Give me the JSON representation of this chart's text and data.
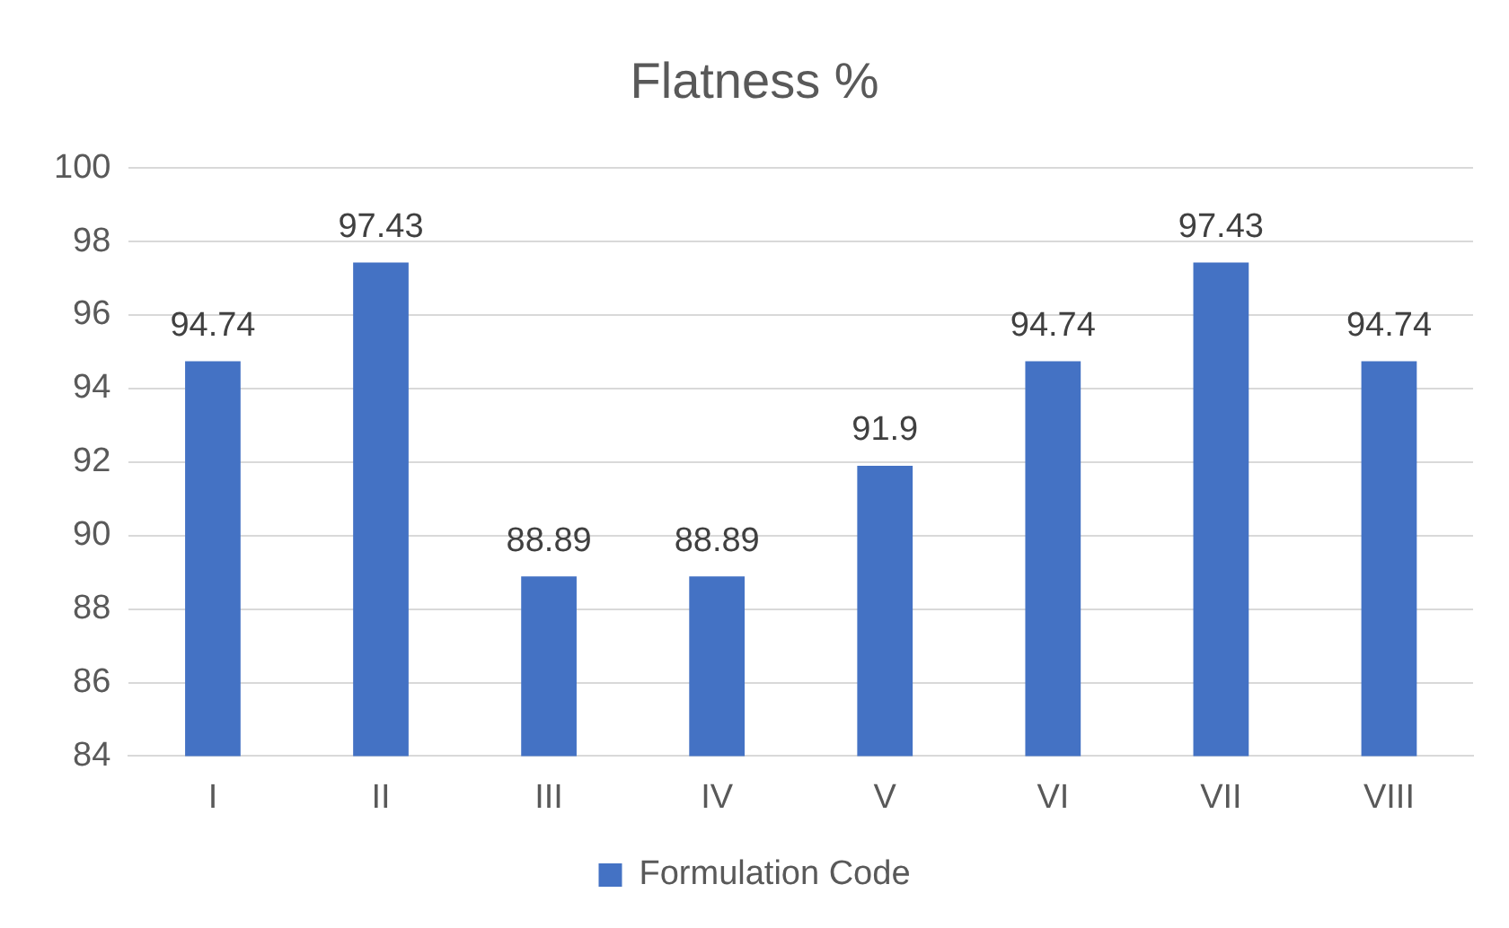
{
  "chart_data": {
    "type": "bar",
    "title": "Flatness %",
    "categories": [
      "I",
      "II",
      "III",
      "IV",
      "V",
      "VI",
      "VII",
      "VIII"
    ],
    "series": [
      {
        "name": "Formulation Code",
        "color": "#4472c4",
        "values": [
          94.74,
          97.43,
          88.89,
          88.89,
          91.9,
          94.74,
          97.43,
          94.74
        ]
      }
    ],
    "ylim": [
      84,
      100
    ],
    "yticks": [
      84,
      86,
      88,
      90,
      92,
      94,
      96,
      98,
      100
    ],
    "grid": "y",
    "legend": "bottom",
    "data_labels": true
  }
}
